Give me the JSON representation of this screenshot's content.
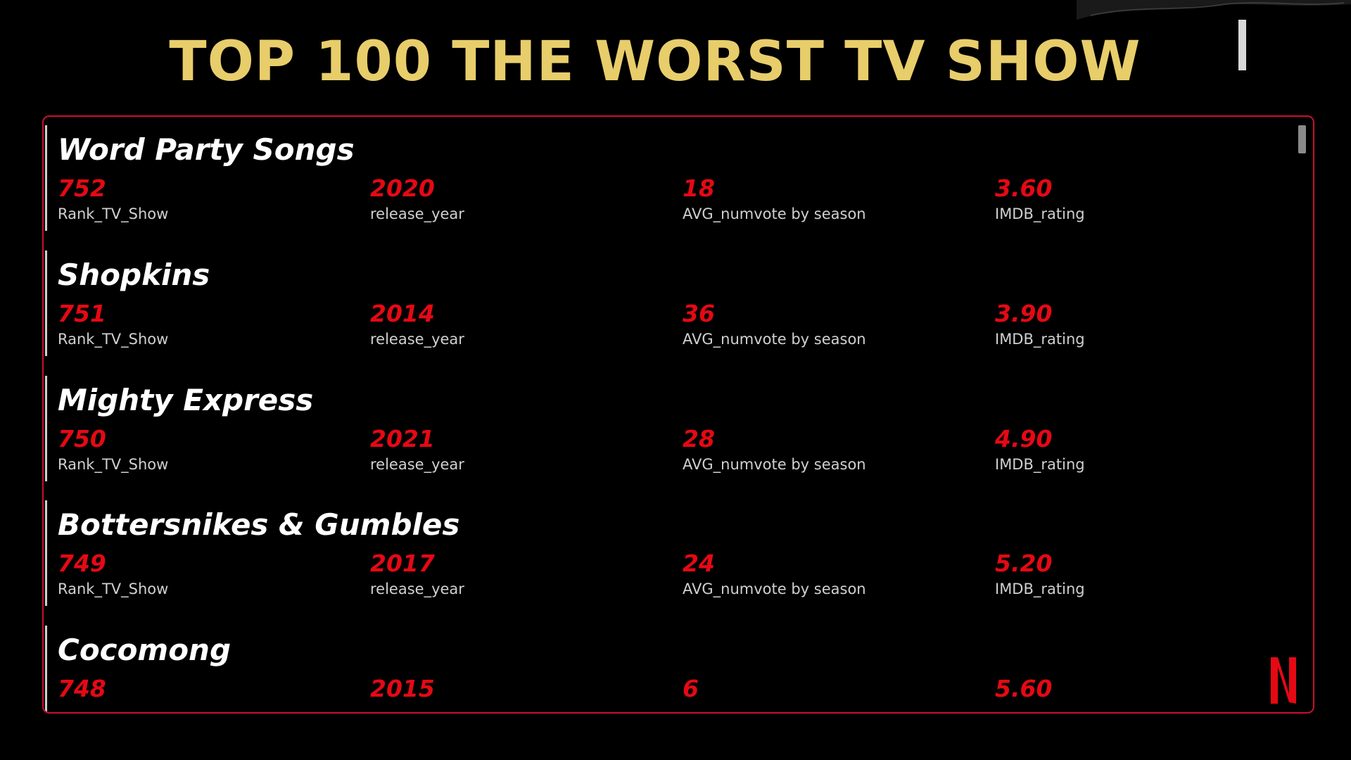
{
  "header": {
    "title": "TOP 100 THE WORST TV SHOW",
    "title_color": "#e8cd6b"
  },
  "colors": {
    "accent_red": "#e50914",
    "border_red": "#c8102e",
    "background": "#000000"
  },
  "labels": {
    "rank": "Rank_TV_Show",
    "year": "release_year",
    "votes": "AVG_numvote by season",
    "rating": "IMDB_rating"
  },
  "shows": [
    {
      "name": "Word Party Songs",
      "rank": "752",
      "year": "2020",
      "votes": "18",
      "rating": "3.60"
    },
    {
      "name": "Shopkins",
      "rank": "751",
      "year": "2014",
      "votes": "36",
      "rating": "3.90"
    },
    {
      "name": "Mighty Express",
      "rank": "750",
      "year": "2021",
      "votes": "28",
      "rating": "4.90"
    },
    {
      "name": "Bottersnikes & Gumbles",
      "rank": "749",
      "year": "2017",
      "votes": "24",
      "rating": "5.20"
    },
    {
      "name": "Cocomong",
      "rank": "748",
      "year": "2015",
      "votes": "6",
      "rating": "5.60"
    }
  ],
  "icons": {
    "logo": "netflix-logo-icon",
    "scroll": "scrollbar-thumb"
  }
}
